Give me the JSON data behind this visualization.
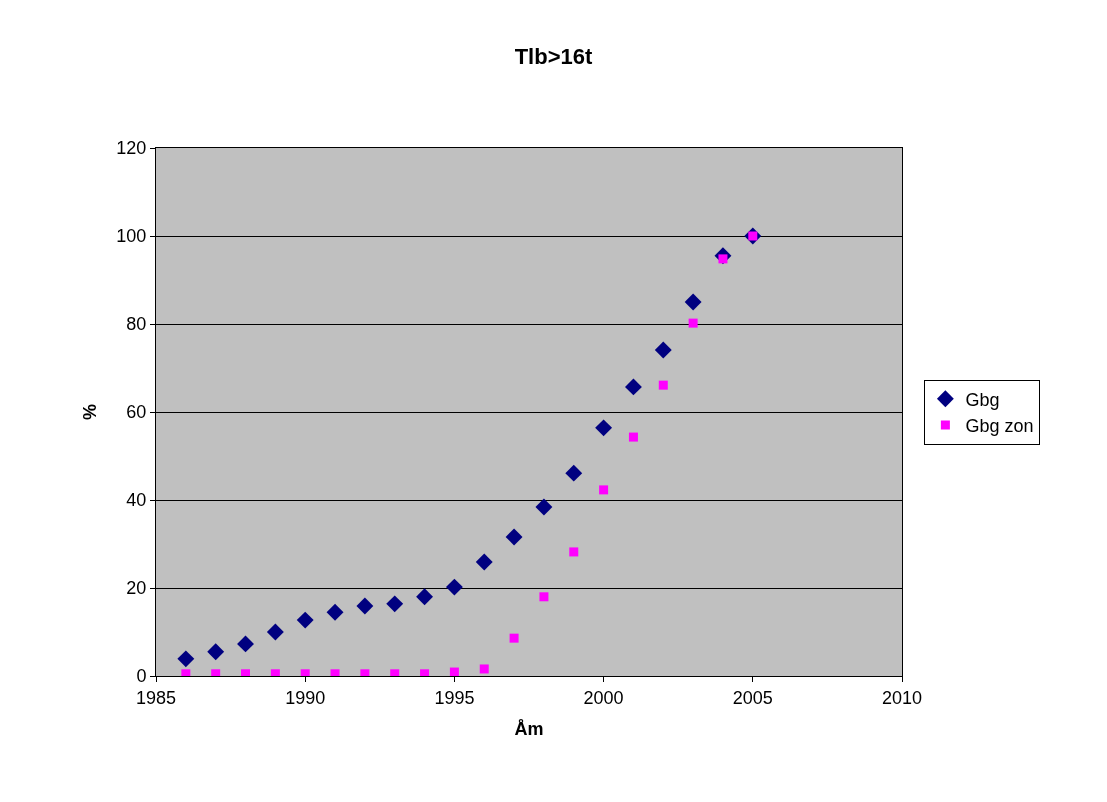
{
  "chart_data": {
    "type": "scatter",
    "title": "Tlb>16t",
    "xlabel": "Åm",
    "ylabel": "%",
    "x": [
      1986,
      1987,
      1988,
      1989,
      1990,
      1991,
      1992,
      1993,
      1994,
      1995,
      1996,
      1997,
      1998,
      1999,
      2000,
      2001,
      2002,
      2003,
      2004,
      2005
    ],
    "series": [
      {
        "name": "Gbg",
        "color": "#000080",
        "marker": "diamond",
        "values": [
          3.9,
          5.5,
          7.3,
          10,
          12.7,
          14.5,
          15.9,
          16.4,
          18,
          20.2,
          25.9,
          31.6,
          38.4,
          46.1,
          56.4,
          65.7,
          74.1,
          85,
          95.5,
          100
        ]
      },
      {
        "name": "Gbg zon",
        "color": "#ff00ff",
        "marker": "square",
        "values": [
          0.5,
          0.5,
          0.5,
          0.5,
          0.5,
          0.5,
          0.5,
          0.5,
          0.5,
          0.9,
          1.6,
          8.6,
          18,
          28.2,
          42.3,
          54.3,
          66.1,
          80.2,
          94.8,
          100
        ]
      }
    ],
    "xlim": [
      1985,
      2010
    ],
    "xticks": [
      1985,
      1990,
      1995,
      2000,
      2005,
      2010
    ],
    "ylim": [
      0,
      120
    ],
    "yticks": [
      0,
      20,
      40,
      60,
      80,
      100,
      120
    ],
    "grid": "y",
    "legend": "right"
  }
}
